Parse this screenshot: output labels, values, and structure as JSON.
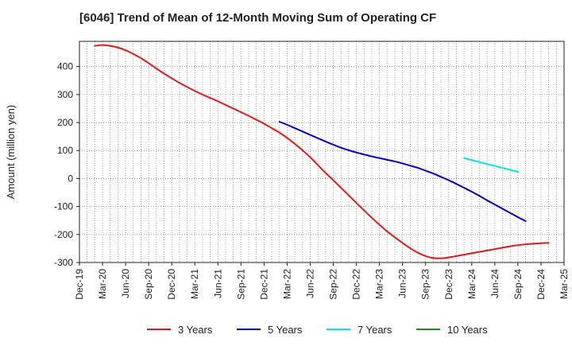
{
  "chart_data": {
    "type": "line",
    "title": "[6046]  Trend of Mean of 12-Month Moving Sum of Operating CF",
    "xlabel": "",
    "ylabel": "Amount (million yen)",
    "ylim": [
      -300,
      490
    ],
    "yticks": [
      -300,
      -200,
      -100,
      0,
      100,
      200,
      300,
      400
    ],
    "grid": true,
    "x_categories": [
      "Dec-19",
      "Mar-20",
      "Jun-20",
      "Sep-20",
      "Dec-20",
      "Mar-21",
      "Jun-21",
      "Sep-21",
      "Dec-21",
      "Mar-22",
      "Jun-22",
      "Sep-22",
      "Dec-22",
      "Mar-23",
      "Jun-23",
      "Sep-23",
      "Dec-23",
      "Mar-24",
      "Jun-24",
      "Sep-24",
      "Dec-24",
      "Mar-25"
    ],
    "x_monthly": [
      "Dec-19",
      "Jan-20",
      "Feb-20",
      "Mar-20",
      "Apr-20",
      "May-20",
      "Jun-20",
      "Jul-20",
      "Aug-20",
      "Sep-20",
      "Oct-20",
      "Nov-20",
      "Dec-20",
      "Jan-21",
      "Feb-21",
      "Mar-21",
      "Apr-21",
      "May-21",
      "Jun-21",
      "Jul-21",
      "Aug-21",
      "Sep-21",
      "Oct-21",
      "Nov-21",
      "Dec-21",
      "Jan-22",
      "Feb-22",
      "Mar-22",
      "Apr-22",
      "May-22",
      "Jun-22",
      "Jul-22",
      "Aug-22",
      "Sep-22",
      "Oct-22",
      "Nov-22",
      "Dec-22",
      "Jan-23",
      "Feb-23",
      "Mar-23",
      "Apr-23",
      "May-23",
      "Jun-23",
      "Jul-23",
      "Aug-23",
      "Sep-23",
      "Oct-23",
      "Nov-23",
      "Dec-23",
      "Jan-24",
      "Feb-24",
      "Mar-24",
      "Apr-24",
      "May-24",
      "Jun-24",
      "Jul-24",
      "Aug-24",
      "Sep-24",
      "Oct-24",
      "Nov-24",
      "Dec-24",
      "Jan-25",
      "Feb-25",
      "Mar-25"
    ],
    "series": [
      {
        "name": "3 Years",
        "color": "#e41a1c",
        "start": "Feb-20",
        "values": [
          474,
          477,
          474,
          468,
          458,
          445,
          430,
          412,
          393,
          375,
          358,
          342,
          327,
          313,
          300,
          288,
          276,
          263,
          250,
          237,
          224,
          210,
          196,
          180,
          164,
          145,
          124,
          101,
          76,
          48,
          20,
          -6,
          -33,
          -60,
          -87,
          -114,
          -140,
          -165,
          -189,
          -210,
          -230,
          -249,
          -265,
          -277,
          -284,
          -285,
          -282,
          -277,
          -272,
          -267,
          -262,
          -257,
          -252,
          -247,
          -242,
          -238,
          -235,
          -233,
          -231,
          -230
        ]
      },
      {
        "name": "5 Years",
        "color": "#0000cc",
        "start": "Feb-22",
        "values": [
          203,
          192,
          180,
          168,
          156,
          144,
          132,
          121,
          110,
          101,
          93,
          86,
          79,
          73,
          67,
          61,
          54,
          46,
          38,
          28,
          18,
          6,
          -6,
          -19,
          -33,
          -47,
          -62,
          -78,
          -93,
          -108,
          -123,
          -138,
          -152
        ]
      },
      {
        "name": "7 Years",
        "color": "#00e5ee",
        "start": "Feb-24",
        "values": [
          73,
          66,
          59,
          52,
          45,
          38,
          31,
          24
        ]
      },
      {
        "name": "10 Years",
        "color": "#228b22",
        "start": "Feb-24",
        "values": []
      }
    ]
  }
}
